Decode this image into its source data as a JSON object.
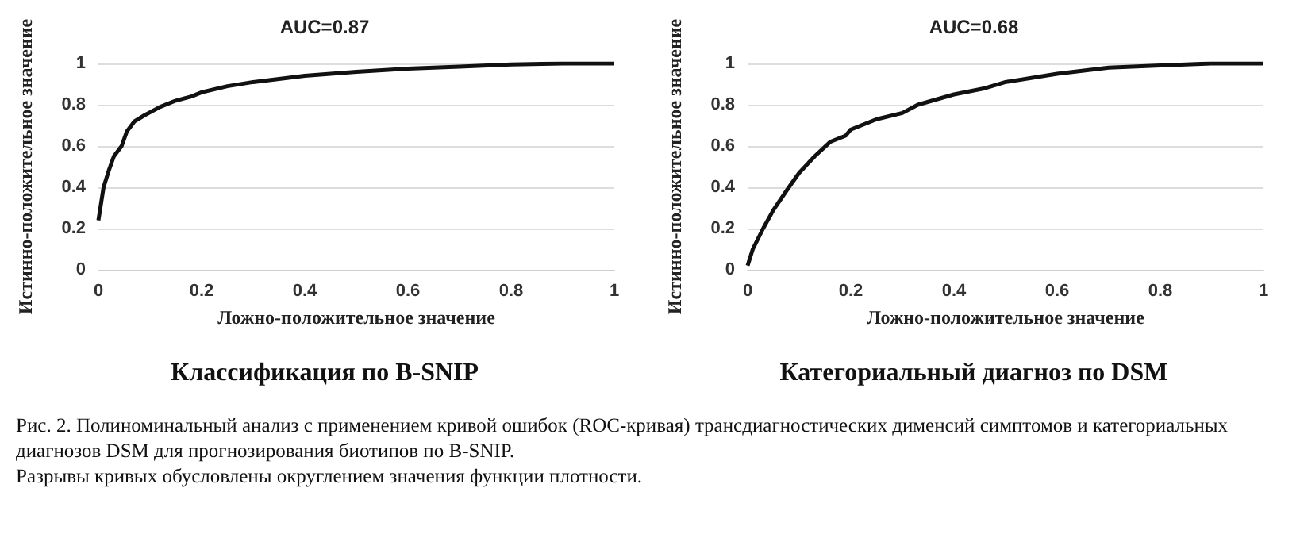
{
  "chart_data": [
    {
      "type": "line",
      "title": "AUC=0.87",
      "subtitle": "Классификация по B-SNIP",
      "xlabel": "Ложно-положительное значение",
      "ylabel": "Истинно-положительное значение",
      "xlim": [
        0,
        1
      ],
      "xticks": [
        0,
        0.2,
        0.4,
        0.6,
        0.8,
        1
      ],
      "ylim": [
        0,
        1
      ],
      "yticks": [
        0,
        0.2,
        0.4,
        0.6,
        0.8,
        1
      ],
      "grid": "y",
      "marker": "none",
      "line_style": "solid",
      "x": [
        0,
        0.005,
        0.01,
        0.02,
        0.03,
        0.045,
        0.055,
        0.07,
        0.09,
        0.12,
        0.15,
        0.18,
        0.2,
        0.25,
        0.3,
        0.4,
        0.5,
        0.6,
        0.7,
        0.8,
        0.9,
        1
      ],
      "series": [
        {
          "color": "#111111",
          "values": [
            0.24,
            0.32,
            0.4,
            0.48,
            0.55,
            0.6,
            0.67,
            0.72,
            0.75,
            0.79,
            0.82,
            0.84,
            0.86,
            0.89,
            0.91,
            0.94,
            0.96,
            0.975,
            0.985,
            0.995,
            1,
            1
          ]
        }
      ]
    },
    {
      "type": "line",
      "title": "AUC=0.68",
      "subtitle": "Категориальный диагноз по DSM",
      "xlabel": "Ложно-положительное значение",
      "ylabel": "Истинно-положительное значение",
      "xlim": [
        0,
        1
      ],
      "xticks": [
        0,
        0.2,
        0.4,
        0.6,
        0.8,
        1
      ],
      "ylim": [
        0,
        1
      ],
      "yticks": [
        0,
        0.2,
        0.4,
        0.6,
        0.8,
        1
      ],
      "grid": "y",
      "marker": "none",
      "line_style": "solid",
      "x": [
        0,
        0.01,
        0.03,
        0.05,
        0.08,
        0.1,
        0.13,
        0.16,
        0.19,
        0.2,
        0.25,
        0.3,
        0.33,
        0.4,
        0.46,
        0.5,
        0.6,
        0.7,
        0.8,
        0.9,
        1
      ],
      "series": [
        {
          "color": "#111111",
          "values": [
            0.02,
            0.1,
            0.2,
            0.29,
            0.4,
            0.47,
            0.55,
            0.62,
            0.65,
            0.68,
            0.73,
            0.76,
            0.8,
            0.85,
            0.88,
            0.91,
            0.95,
            0.98,
            0.99,
            1,
            1
          ]
        }
      ]
    },
    {
      "type": "other",
      "annotations": [
        "Рис. 2. Полиноминальный анализ с применением кривой ошибок (ROC-кривая) трансдиагностических дименсий симптомов и категориальных диагнозов DSM для прогнозирования биотипов по B-SNIP.",
        "Разрывы кривых обусловлены округлением значения функции плотности."
      ]
    }
  ]
}
